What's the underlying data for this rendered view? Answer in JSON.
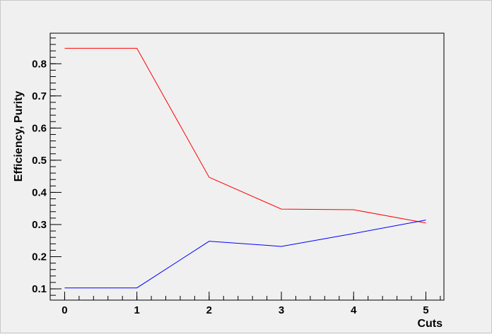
{
  "chart_data": {
    "type": "line",
    "title": "",
    "xlabel": "Cuts",
    "ylabel": "Efficiency, Purity",
    "x": [
      0,
      1,
      2,
      3,
      4,
      5
    ],
    "xlim": [
      -0.2,
      5.25
    ],
    "ylim": [
      0.065,
      0.895
    ],
    "xticks": [
      0,
      1,
      2,
      3,
      4,
      5
    ],
    "yticks": [
      0.1,
      0.2,
      0.3,
      0.4,
      0.5,
      0.6,
      0.7,
      0.8
    ],
    "ytick_labels": [
      "0.1",
      "0.2",
      "0.3",
      "0.4",
      "0.5",
      "0.6",
      "0.7",
      "0.8"
    ],
    "grid": false,
    "legend": "none",
    "series": [
      {
        "color": "#ff0000",
        "values": [
          0.848,
          0.848,
          0.447,
          0.348,
          0.346,
          0.305
        ]
      },
      {
        "color": "#0000ff",
        "values": [
          0.103,
          0.103,
          0.248,
          0.232,
          0.272,
          0.314
        ]
      }
    ]
  },
  "colors": {
    "background": "#f0f0f0",
    "frame": "#000000"
  }
}
